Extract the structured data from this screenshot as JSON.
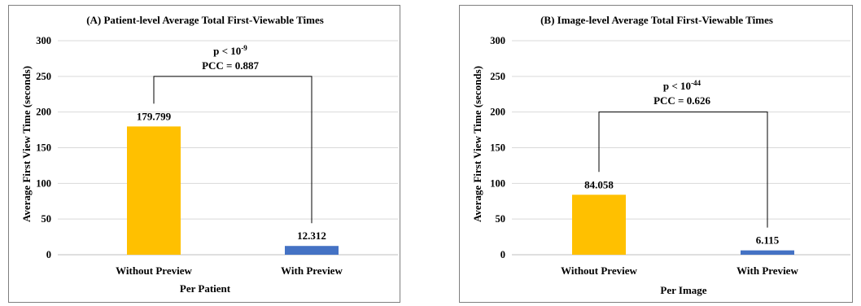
{
  "colors": {
    "without_preview": "#FFC000",
    "with_preview": "#4472C4"
  },
  "chart_data": [
    {
      "type": "bar",
      "title": "(A) Patient-level Average Total First-Viewable Times",
      "xlabel": "Per Patient",
      "ylabel": "Average First View Time (seconds)",
      "ylim": [
        0,
        300
      ],
      "yticks": [
        0,
        50,
        100,
        150,
        200,
        250,
        300
      ],
      "yticklabels": [
        "0",
        "50",
        "100",
        "150",
        "200",
        "250",
        "300"
      ],
      "categories": [
        "Without Preview",
        "With Preview"
      ],
      "values": [
        179.799,
        12.312
      ],
      "value_labels": [
        "179.799",
        "12.312"
      ],
      "grid": true,
      "annotation": {
        "p_text": "p < 10",
        "p_exponent": "-9",
        "pcc_text": "PCC = 0.887",
        "bracket_y": 250
      }
    },
    {
      "type": "bar",
      "title": "(B) Image-level Average Total First-Viewable Times",
      "xlabel": "Per Image",
      "ylabel": "Average First View Time (seconds)",
      "ylim": [
        0,
        300
      ],
      "yticks": [
        0,
        50,
        100,
        150,
        200,
        250,
        300
      ],
      "yticklabels": [
        "0",
        "50",
        "100",
        "150",
        "200",
        "250",
        "300"
      ],
      "categories": [
        "Without Preview",
        "With Preview"
      ],
      "values": [
        84.058,
        6.115
      ],
      "value_labels": [
        "84.058",
        "6.115"
      ],
      "grid": true,
      "annotation": {
        "p_text": "p < 10",
        "p_exponent": "-44",
        "pcc_text": "PCC = 0.626",
        "bracket_y": 200
      }
    }
  ]
}
